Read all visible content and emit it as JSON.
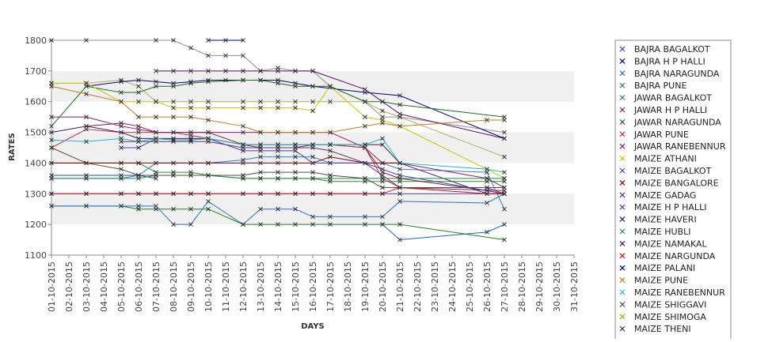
{
  "chart_data": {
    "type": "line",
    "title": "",
    "xlabel": "DAYS",
    "ylabel": "RATES",
    "ylim": [
      1100,
      1800
    ],
    "yticks": [
      1100,
      1200,
      1300,
      1400,
      1500,
      1600,
      1700,
      1800
    ],
    "grid": "alternating horizontal bands",
    "legend_position": "right",
    "categories": [
      "01-10-2015",
      "02-10-2015",
      "03-10-2015",
      "04-10-2015",
      "05-10-2015",
      "06-10-2015",
      "07-10-2015",
      "08-10-2015",
      "09-10-2015",
      "10-10-2015",
      "11-10-2015",
      "12-10-2015",
      "13-10-2015",
      "14-10-2015",
      "15-10-2015",
      "16-10-2015",
      "17-10-2015",
      "18-10-2015",
      "19-10-2015",
      "20-10-2015",
      "21-10-2015",
      "22-10-2015",
      "23-10-2015",
      "24-10-2015",
      "25-10-2015",
      "26-10-2015",
      "27-10-2015",
      "28-10-2015",
      "29-10-2015",
      "30-10-2015",
      "31-10-2015"
    ],
    "series": [
      {
        "name": "BAJRA BAGALKOT",
        "color": "#1f4e9c",
        "values": [
          1360,
          null,
          1360,
          null,
          1360,
          1360,
          1350,
          null,
          null,
          null,
          null,
          null,
          null,
          null,
          null,
          null,
          null,
          null,
          null,
          null,
          null,
          null,
          null,
          null,
          null,
          null,
          null,
          null,
          null,
          null,
          null
        ]
      },
      {
        "name": "BAJRA H P HALLI",
        "color": "#000080",
        "values": [
          null,
          null,
          1650,
          null,
          1665,
          1670,
          1665,
          1660,
          1665,
          1670,
          1670,
          1670,
          1670,
          1670,
          1660,
          1650,
          null,
          null,
          1630,
          null,
          1620,
          null,
          null,
          null,
          null,
          null,
          1480,
          null,
          null,
          null,
          null
        ]
      },
      {
        "name": "BAJRA NARAGUNDA",
        "color": "#2f6fbf",
        "values": [
          1260,
          null,
          1260,
          null,
          1260,
          1260,
          1260,
          1200,
          1200,
          1275,
          null,
          1200,
          1250,
          1250,
          1250,
          1225,
          1225,
          null,
          1225,
          1225,
          1275,
          null,
          null,
          null,
          null,
          1270,
          1300,
          null,
          null,
          null,
          null
        ]
      },
      {
        "name": "BAJRA PUNE",
        "color": "#2e8b2e",
        "values": [
          1400,
          null,
          1400,
          null,
          1400,
          1400,
          1370,
          1370,
          1370,
          1360,
          null,
          1350,
          1350,
          1350,
          1350,
          1350,
          1340,
          null,
          1340,
          1340,
          1340,
          null,
          null,
          null,
          null,
          1340,
          1340,
          null,
          null,
          null,
          null
        ]
      },
      {
        "name": "JAWAR BAGALKOT",
        "color": "#3a78c8",
        "values": [
          1350,
          null,
          1350,
          null,
          1350,
          1360,
          1400,
          1400,
          1400,
          1400,
          null,
          1410,
          1420,
          1420,
          1420,
          1420,
          1400,
          null,
          1400,
          1400,
          1380,
          null,
          null,
          null,
          null,
          1370,
          1250,
          null,
          null,
          null,
          null
        ]
      },
      {
        "name": "JAWAR H P HALLI",
        "color": "#7a1f3d",
        "values": [
          null,
          null,
          1520,
          null,
          1530,
          1520,
          1500,
          1500,
          1500,
          1500,
          null,
          1460,
          1450,
          1450,
          1450,
          1460,
          1460,
          null,
          1450,
          1370,
          1350,
          null,
          null,
          null,
          null,
          1310,
          1300,
          null,
          null,
          null,
          null
        ]
      },
      {
        "name": "JAWAR NARAGUNDA",
        "color": "#1a6b1a",
        "values": [
          1520,
          null,
          1650,
          null,
          1630,
          1630,
          1650,
          1650,
          1660,
          1665,
          null,
          1670,
          1670,
          1660,
          1650,
          1650,
          1650,
          null,
          1600,
          1600,
          1590,
          null,
          null,
          null,
          null,
          null,
          1550,
          null,
          null,
          null,
          null
        ]
      },
      {
        "name": "JAWAR PUNE",
        "color": "#c0304e",
        "values": [
          1450,
          null,
          1510,
          null,
          1500,
          1500,
          1500,
          1500,
          1490,
          1480,
          null,
          1460,
          1460,
          1460,
          1460,
          1460,
          1460,
          null,
          1450,
          1350,
          1320,
          null,
          null,
          null,
          null,
          1320,
          1300,
          null,
          null,
          null,
          null
        ]
      },
      {
        "name": "JAWAR RANEBENNUR",
        "color": "#8b1a6b",
        "values": [
          1550,
          null,
          1550,
          null,
          1520,
          1510,
          1500,
          1500,
          1500,
          1500,
          null,
          1500,
          1500,
          1500,
          1500,
          1500,
          1500,
          null,
          1450,
          1400,
          1400,
          null,
          null,
          null,
          null,
          1350,
          1320,
          null,
          null,
          null,
          null
        ]
      },
      {
        "name": "MAIZE ATHANI",
        "color": "#c8c800",
        "values": [
          1660,
          null,
          1660,
          null,
          1600,
          1600,
          1600,
          1580,
          1580,
          1580,
          null,
          1580,
          1580,
          1580,
          1580,
          1570,
          1650,
          null,
          1550,
          1540,
          1520,
          null,
          null,
          null,
          null,
          1380,
          1350,
          null,
          null,
          null,
          null
        ]
      },
      {
        "name": "MAIZE BAGALKOT",
        "color": "#4a3a9a",
        "values": [
          1300,
          null,
          1300,
          null,
          1300,
          1300,
          1300,
          1300,
          1300,
          1300,
          null,
          1300,
          1300,
          1300,
          1300,
          1300,
          1300,
          null,
          1300,
          1300,
          1300,
          null,
          null,
          null,
          null,
          null,
          1300,
          null,
          null,
          null,
          null
        ]
      },
      {
        "name": "MAIZE BANGALORE",
        "color": "#8b0000",
        "values": [
          1400,
          null,
          1400,
          null,
          1400,
          1400,
          1400,
          1400,
          1400,
          1400,
          null,
          1400,
          1400,
          1400,
          1400,
          1400,
          1420,
          null,
          1400,
          1400,
          1400,
          null,
          null,
          null,
          null,
          null,
          null,
          null,
          null,
          null,
          null
        ]
      },
      {
        "name": "MAIZE GADAG",
        "color": "#6b2f6b",
        "values": [
          null,
          null,
          null,
          null,
          1470,
          1470,
          1470,
          1470,
          1470,
          1470,
          null,
          1450,
          1450,
          1450,
          1450,
          1450,
          1440,
          null,
          1400,
          1360,
          1320,
          null,
          null,
          null,
          null,
          null,
          1310,
          null,
          null,
          null,
          null
        ]
      },
      {
        "name": "MAIZE H P HALLI",
        "color": "#4040c0",
        "values": [
          null,
          null,
          null,
          null,
          1450,
          1450,
          1480,
          1475,
          1475,
          1480,
          null,
          1440,
          1440,
          1440,
          1440,
          1400,
          1400,
          null,
          1400,
          1380,
          1360,
          null,
          null,
          null,
          null,
          null,
          1300,
          null,
          null,
          null,
          null
        ]
      },
      {
        "name": "MAIZE HAVERI",
        "color": "#3c1a5a",
        "values": [
          1500,
          null,
          1520,
          null,
          1500,
          1480,
          1480,
          1480,
          1480,
          1480,
          null,
          1460,
          1460,
          1460,
          1460,
          1460,
          1460,
          null,
          1460,
          1460,
          1400,
          null,
          null,
          null,
          null,
          1300,
          1300,
          null,
          null,
          null,
          null
        ]
      },
      {
        "name": "MAIZE HUBLI",
        "color": "#1a8a4a",
        "values": [
          1350,
          null,
          1350,
          null,
          1350,
          1350,
          1360,
          1360,
          1360,
          1360,
          null,
          1350,
          1350,
          1350,
          1350,
          1350,
          1350,
          null,
          1350,
          1350,
          1350,
          null,
          null,
          null,
          null,
          1350,
          1350,
          null,
          null,
          null,
          null
        ]
      },
      {
        "name": "MAIZE NAMAKAL",
        "color": "#5a0a6a",
        "values": [
          null,
          null,
          null,
          null,
          null,
          null,
          1700,
          1700,
          1700,
          1700,
          1700,
          1700,
          1700,
          1700,
          1700,
          1700,
          null,
          null,
          1640,
          1600,
          1560,
          null,
          null,
          null,
          null,
          null,
          1480,
          null,
          null,
          null,
          null
        ]
      },
      {
        "name": "MAIZE NARGUNDA",
        "color": "#d01010",
        "values": [
          1300,
          null,
          1300,
          null,
          1300,
          1300,
          1300,
          1300,
          1300,
          1300,
          null,
          1300,
          1300,
          1300,
          1300,
          1300,
          1300,
          null,
          1300,
          1300,
          1320,
          null,
          null,
          null,
          null,
          1300,
          1300,
          null,
          null,
          null,
          null
        ]
      },
      {
        "name": "MAIZE PALANI",
        "color": "#00008b",
        "values": [
          null,
          null,
          null,
          null,
          null,
          null,
          null,
          null,
          null,
          1800,
          1800,
          1800,
          null,
          null,
          null,
          null,
          null,
          null,
          null,
          null,
          null,
          null,
          null,
          null,
          null,
          null,
          null,
          null,
          null,
          null,
          null
        ]
      },
      {
        "name": "MAIZE PUNE",
        "color": "#c87a20",
        "values": [
          1650,
          null,
          1625,
          null,
          1600,
          1550,
          1550,
          1550,
          1550,
          1540,
          null,
          1520,
          1500,
          1500,
          1500,
          1500,
          1500,
          null,
          1520,
          1530,
          1520,
          null,
          null,
          null,
          null,
          1540,
          1540,
          null,
          null,
          null,
          null
        ]
      },
      {
        "name": "MAIZE RANEBENNUR",
        "color": "#20b8c8",
        "values": [
          1475,
          null,
          1470,
          null,
          1480,
          1470,
          1480,
          1475,
          1475,
          1480,
          null,
          1460,
          1460,
          1460,
          1460,
          1460,
          1460,
          null,
          1460,
          1480,
          1400,
          null,
          null,
          null,
          null,
          1380,
          1370,
          null,
          null,
          null,
          null
        ]
      },
      {
        "name": "MAIZE SHIGGAVI",
        "color": "#5a4a3a",
        "values": [
          1450,
          null,
          1400,
          null,
          1380,
          1360,
          1360,
          1360,
          1360,
          1360,
          null,
          1360,
          1370,
          1370,
          1370,
          1370,
          1360,
          null,
          1350,
          1320,
          1320,
          null,
          null,
          null,
          null,
          1320,
          1320,
          null,
          null,
          null,
          null
        ]
      },
      {
        "name": "MAIZE SHIMOGA",
        "color": "#a8a800",
        "values": [
          null,
          null,
          null,
          null,
          null,
          null,
          null,
          null,
          null,
          null,
          null,
          null,
          null,
          null,
          null,
          null,
          null,
          null,
          null,
          null,
          null,
          null,
          null,
          null,
          null,
          null,
          null,
          null,
          null,
          null,
          null
        ]
      },
      {
        "name": "MAIZE THENI",
        "color": "#404040",
        "values": [
          null,
          null,
          null,
          null,
          null,
          null,
          null,
          null,
          null,
          null,
          null,
          null,
          null,
          null,
          null,
          null,
          null,
          null,
          null,
          null,
          null,
          null,
          null,
          null,
          null,
          null,
          null,
          null,
          null,
          null,
          null
        ]
      }
    ],
    "extra_series": [
      {
        "color": "#909090",
        "values": [
          1800,
          null,
          1800,
          null,
          null,
          null,
          1800,
          1800,
          1775,
          1750,
          1750,
          1750,
          1700,
          1710,
          1700,
          1700,
          1650,
          null,
          1600,
          1550,
          1550,
          null,
          null,
          null,
          null,
          null,
          1500,
          null,
          null,
          null,
          null
        ]
      },
      {
        "color": "#208020",
        "values": [
          1260,
          null,
          1260,
          null,
          1260,
          1250,
          1250,
          1250,
          1250,
          1250,
          null,
          1200,
          1200,
          1200,
          1200,
          1200,
          1200,
          null,
          1200,
          1200,
          1200,
          null,
          null,
          null,
          null,
          null,
          1150,
          null,
          null,
          null,
          null
        ]
      },
      {
        "color": "#b0b060",
        "values": [
          1660,
          null,
          1660,
          null,
          1670,
          1650,
          1600,
          1600,
          1600,
          1600,
          null,
          1600,
          1600,
          1600,
          1600,
          1600,
          1600,
          null,
          1600,
          1570,
          1550,
          null,
          null,
          null,
          null,
          null,
          1420,
          null,
          null,
          null,
          null
        ]
      },
      {
        "color": "#2060c0",
        "values": [
          null,
          null,
          null,
          null,
          null,
          null,
          null,
          null,
          null,
          null,
          null,
          null,
          null,
          null,
          null,
          null,
          null,
          null,
          null,
          1200,
          1150,
          null,
          null,
          null,
          null,
          1175,
          1200,
          null,
          null,
          null,
          null
        ]
      }
    ]
  }
}
